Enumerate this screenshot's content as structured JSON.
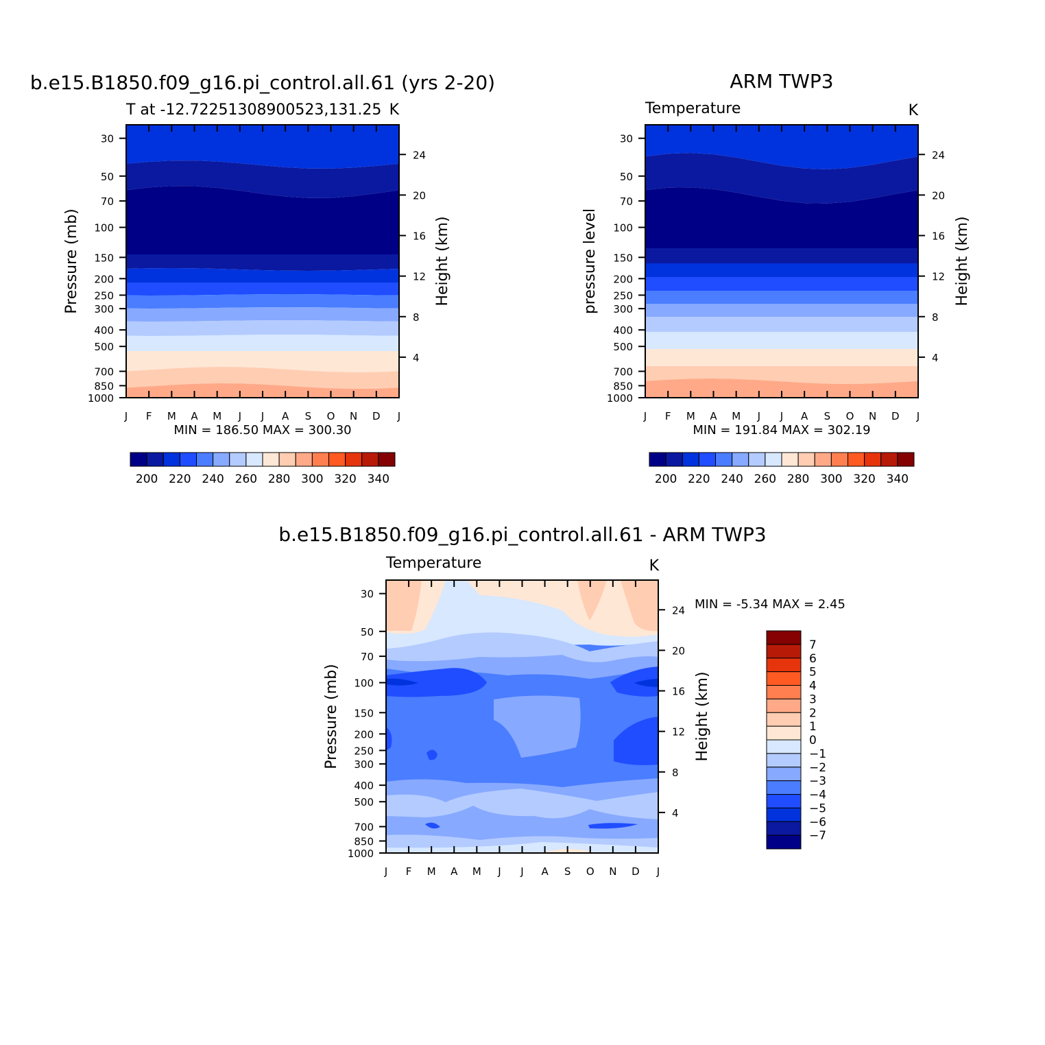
{
  "months": [
    "J",
    "F",
    "M",
    "A",
    "M",
    "J",
    "J",
    "A",
    "S",
    "O",
    "N",
    "D",
    "J"
  ],
  "pressure_ticks": [
    "30",
    "50",
    "70",
    "100",
    "150",
    "200",
    "250",
    "300",
    "400",
    "500",
    "700",
    "850",
    "1000"
  ],
  "height_ticks": [
    "24",
    "20",
    "16",
    "12",
    "8",
    "4"
  ],
  "colors": {
    "cold": [
      "#000087",
      "#0a19a0",
      "#0033dd",
      "#1f4dff",
      "#4a7dff",
      "#87a9ff",
      "#b3cbff",
      "#d7e8ff"
    ],
    "warm": [
      "#ffe7d5",
      "#ffcdb2",
      "#ffa988",
      "#ff7f50",
      "#ff5a22",
      "#e6340d",
      "#b81a08",
      "#850202"
    ]
  },
  "chart_data": [
    {
      "type": "heatmap",
      "title": "b.e15.B1850.f09_g16.pi_control.all.61 (yrs 2-20)",
      "subtitle_left": "T at -12.72251308900523,131.25",
      "subtitle_right": "K",
      "ylabel": "Pressure (mb)",
      "y2label": "Height (km)",
      "xlabel": "",
      "stats": "MIN = 186.50 MAX = 300.30",
      "min": 186.5,
      "max": 300.3,
      "contour_levels": [
        195,
        200,
        205,
        210,
        215,
        220,
        225,
        230,
        235,
        240,
        245,
        250,
        255,
        260,
        265,
        270,
        275,
        280,
        285,
        290,
        295,
        300,
        305,
        310,
        315,
        320,
        325,
        330,
        335,
        340,
        345
      ],
      "colorbar_labels": [
        "200",
        "220",
        "240",
        "260",
        "280",
        "300",
        "320",
        "340"
      ],
      "ylim_mb": [
        1000,
        25
      ]
    },
    {
      "type": "heatmap",
      "title": "ARM TWP3",
      "subtitle_left": "Temperature",
      "subtitle_right": "K",
      "ylabel": "pressure level",
      "y2label": "Height (km)",
      "xlabel": "",
      "stats": "MIN = 191.84 MAX = 302.19",
      "min": 191.84,
      "max": 302.19,
      "colorbar_labels": [
        "200",
        "220",
        "240",
        "260",
        "280",
        "300",
        "320",
        "340"
      ],
      "ylim_mb": [
        1000,
        25
      ]
    },
    {
      "type": "heatmap",
      "title": "b.e15.B1850.f09_g16.pi_control.all.61 - ARM TWP3",
      "subtitle_left": "Temperature",
      "subtitle_right": "K",
      "ylabel": "Pressure (mb)",
      "y2label": "Height (km)",
      "xlabel": "",
      "stats": "MIN = -5.34 MAX = 2.45",
      "min": -5.34,
      "max": 2.45,
      "contour_levels": [
        -7,
        -6,
        -5,
        -4,
        -3,
        -2,
        -1,
        0,
        1,
        2,
        3,
        4,
        5,
        6,
        7
      ],
      "colorbar_labels": [
        "7",
        "6",
        "5",
        "4",
        "3",
        "2",
        "1",
        "0",
        "-1",
        "-2",
        "-3",
        "-4",
        "-5",
        "-6",
        "-7"
      ],
      "ylim_mb": [
        1000,
        25
      ]
    }
  ]
}
